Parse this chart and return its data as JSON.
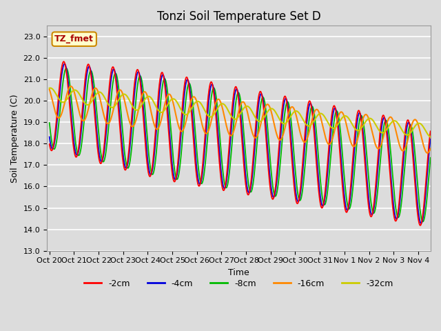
{
  "title": "Tonzi Soil Temperature Set D",
  "xlabel": "Time",
  "ylabel": "Soil Temperature (C)",
  "ylim": [
    13.0,
    23.5
  ],
  "yticks": [
    13.0,
    14.0,
    15.0,
    16.0,
    17.0,
    18.0,
    19.0,
    20.0,
    21.0,
    22.0,
    23.0
  ],
  "background_color": "#dcdcdc",
  "plot_bg_color": "#dcdcdc",
  "series_colors": [
    "#ff0000",
    "#0000dd",
    "#00bb00",
    "#ff8800",
    "#cccc00"
  ],
  "series_labels": [
    "-2cm",
    "-4cm",
    "-8cm",
    "-16cm",
    "-32cm"
  ],
  "annotation_text": "TZ_fmet",
  "annotation_bg": "#ffffcc",
  "annotation_border": "#cc8800",
  "title_fontsize": 12,
  "label_fontsize": 9,
  "tick_fontsize": 8
}
